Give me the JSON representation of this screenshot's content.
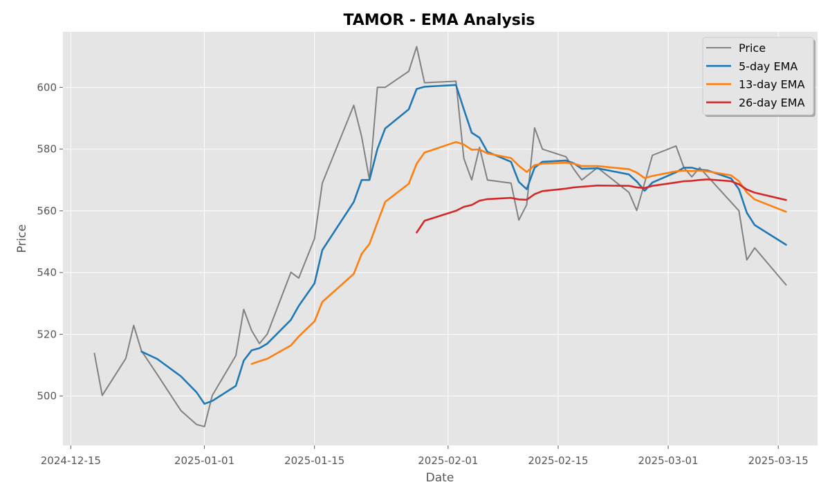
{
  "chart_data": {
    "type": "line",
    "title": "TAMOR - EMA Analysis",
    "xlabel": "Date",
    "ylabel": "Price",
    "x_ticks": [
      "2024-12-15",
      "2025-01-01",
      "2025-01-15",
      "2025-02-01",
      "2025-02-15",
      "2025-03-01",
      "2025-03-15"
    ],
    "y_ticks": [
      500,
      520,
      540,
      560,
      580,
      600
    ],
    "xlim": [
      "2024-12-14",
      "2025-03-20"
    ],
    "ylim": [
      484,
      618
    ],
    "grid": true,
    "legend_position": "top-right",
    "series": [
      {
        "name": "Price",
        "color": "#808080",
        "points": [
          [
            "2024-12-18",
            513.8
          ],
          [
            "2024-12-19",
            500.2
          ],
          [
            "2024-12-22",
            512.2
          ],
          [
            "2024-12-23",
            522.9
          ],
          [
            "2024-12-24",
            514.6
          ],
          [
            "2024-12-26",
            507.0
          ],
          [
            "2024-12-29",
            495.3
          ],
          [
            "2024-12-31",
            490.8
          ],
          [
            "2025-01-01",
            490.1
          ],
          [
            "2025-01-02",
            500.2
          ],
          [
            "2025-01-05",
            513.1
          ],
          [
            "2025-01-06",
            528.1
          ],
          [
            "2025-01-07",
            521.2
          ],
          [
            "2025-01-08",
            517.0
          ],
          [
            "2025-01-09",
            520.1
          ],
          [
            "2025-01-12",
            540.1
          ],
          [
            "2025-01-13",
            538.2
          ],
          [
            "2025-01-15",
            551.0
          ],
          [
            "2025-01-16",
            569.0
          ],
          [
            "2025-01-20",
            594.2
          ],
          [
            "2025-01-21",
            584.0
          ],
          [
            "2025-01-22",
            570.0
          ],
          [
            "2025-01-23",
            600.0
          ],
          [
            "2025-01-24",
            600.0
          ],
          [
            "2025-01-27",
            605.2
          ],
          [
            "2025-01-28",
            613.2
          ],
          [
            "2025-01-29",
            601.5
          ],
          [
            "2025-02-02",
            602.0
          ],
          [
            "2025-02-03",
            577.0
          ],
          [
            "2025-02-04",
            570.0
          ],
          [
            "2025-02-05",
            580.6
          ],
          [
            "2025-02-06",
            570.0
          ],
          [
            "2025-02-09",
            569.0
          ],
          [
            "2025-02-10",
            557.0
          ],
          [
            "2025-02-11",
            562.0
          ],
          [
            "2025-02-12",
            586.9
          ],
          [
            "2025-02-13",
            580.0
          ],
          [
            "2025-02-16",
            577.5
          ],
          [
            "2025-02-17",
            573.5
          ],
          [
            "2025-02-18",
            570.0
          ],
          [
            "2025-02-20",
            574.0
          ],
          [
            "2025-02-24",
            566.0
          ],
          [
            "2025-02-25",
            560.1
          ],
          [
            "2025-02-27",
            578.0
          ],
          [
            "2025-03-02",
            581.0
          ],
          [
            "2025-03-03",
            574.0
          ],
          [
            "2025-03-04",
            571.0
          ],
          [
            "2025-03-05",
            574.0
          ],
          [
            "2025-03-10",
            560.0
          ],
          [
            "2025-03-11",
            544.1
          ],
          [
            "2025-03-12",
            548.0
          ],
          [
            "2025-03-16",
            536.0
          ]
        ]
      },
      {
        "name": "5-day EMA",
        "color": "#1f77b4",
        "points": [
          [
            "2024-12-24",
            514.4
          ],
          [
            "2024-12-26",
            512.0
          ],
          [
            "2024-12-29",
            506.4
          ],
          [
            "2024-12-31",
            501.2
          ],
          [
            "2025-01-01",
            497.5
          ],
          [
            "2025-01-02",
            498.4
          ],
          [
            "2025-01-05",
            503.3
          ],
          [
            "2025-01-06",
            511.5
          ],
          [
            "2025-01-07",
            514.8
          ],
          [
            "2025-01-08",
            515.5
          ],
          [
            "2025-01-09",
            517.0
          ],
          [
            "2025-01-12",
            524.7
          ],
          [
            "2025-01-13",
            529.2
          ],
          [
            "2025-01-15",
            536.5
          ],
          [
            "2025-01-16",
            547.3
          ],
          [
            "2025-01-20",
            562.9
          ],
          [
            "2025-01-21",
            570.0
          ],
          [
            "2025-01-22",
            570.0
          ],
          [
            "2025-01-23",
            580.0
          ],
          [
            "2025-01-24",
            586.7
          ],
          [
            "2025-01-27",
            592.9
          ],
          [
            "2025-01-28",
            599.5
          ],
          [
            "2025-01-29",
            600.2
          ],
          [
            "2025-02-02",
            600.8
          ],
          [
            "2025-02-03",
            592.9
          ],
          [
            "2025-02-04",
            585.3
          ],
          [
            "2025-02-05",
            583.7
          ],
          [
            "2025-02-06",
            579.1
          ],
          [
            "2025-02-09",
            575.9
          ],
          [
            "2025-02-10",
            569.4
          ],
          [
            "2025-02-11",
            567.0
          ],
          [
            "2025-02-12",
            574.0
          ],
          [
            "2025-02-13",
            575.9
          ],
          [
            "2025-02-16",
            576.3
          ],
          [
            "2025-02-17",
            575.4
          ],
          [
            "2025-02-18",
            573.6
          ],
          [
            "2025-02-20",
            573.8
          ],
          [
            "2025-02-24",
            571.8
          ],
          [
            "2025-02-25",
            569.5
          ],
          [
            "2025-02-26",
            566.5
          ],
          [
            "2025-02-27",
            569.2
          ],
          [
            "2025-03-02",
            572.5
          ],
          [
            "2025-03-03",
            574.0
          ],
          [
            "2025-03-04",
            574.0
          ],
          [
            "2025-03-05",
            573.3
          ],
          [
            "2025-03-06",
            573.1
          ],
          [
            "2025-03-09",
            570.5
          ],
          [
            "2025-03-10",
            567.0
          ],
          [
            "2025-03-11",
            559.4
          ],
          [
            "2025-03-12",
            555.4
          ],
          [
            "2025-03-16",
            549.0
          ]
        ]
      },
      {
        "name": "13-day EMA",
        "color": "#ff7f0e",
        "points": [
          [
            "2025-01-07",
            510.4
          ],
          [
            "2025-01-08",
            511.3
          ],
          [
            "2025-01-09",
            512.1
          ],
          [
            "2025-01-12",
            516.4
          ],
          [
            "2025-01-13",
            519.3
          ],
          [
            "2025-01-15",
            524.2
          ],
          [
            "2025-01-16",
            530.5
          ],
          [
            "2025-01-20",
            539.6
          ],
          [
            "2025-01-21",
            546.1
          ],
          [
            "2025-01-22",
            549.3
          ],
          [
            "2025-01-23",
            556.2
          ],
          [
            "2025-01-24",
            562.9
          ],
          [
            "2025-01-27",
            568.8
          ],
          [
            "2025-01-28",
            575.3
          ],
          [
            "2025-01-29",
            578.9
          ],
          [
            "2025-02-02",
            582.3
          ],
          [
            "2025-02-03",
            581.5
          ],
          [
            "2025-02-04",
            579.8
          ],
          [
            "2025-02-05",
            579.9
          ],
          [
            "2025-02-06",
            578.6
          ],
          [
            "2025-02-09",
            577.1
          ],
          [
            "2025-02-10",
            574.6
          ],
          [
            "2025-02-11",
            572.6
          ],
          [
            "2025-02-12",
            574.8
          ],
          [
            "2025-02-13",
            575.3
          ],
          [
            "2025-02-16",
            575.6
          ],
          [
            "2025-02-17",
            575.3
          ],
          [
            "2025-02-18",
            574.5
          ],
          [
            "2025-02-20",
            574.5
          ],
          [
            "2025-02-24",
            573.5
          ],
          [
            "2025-02-25",
            572.4
          ],
          [
            "2025-02-26",
            570.6
          ],
          [
            "2025-02-27",
            571.3
          ],
          [
            "2025-03-02",
            572.8
          ],
          [
            "2025-03-03",
            573.0
          ],
          [
            "2025-03-04",
            572.9
          ],
          [
            "2025-03-05",
            573.0
          ],
          [
            "2025-03-06",
            572.8
          ],
          [
            "2025-03-09",
            571.5
          ],
          [
            "2025-03-10",
            569.6
          ],
          [
            "2025-03-11",
            566.0
          ],
          [
            "2025-03-12",
            563.7
          ],
          [
            "2025-03-16",
            559.7
          ]
        ]
      },
      {
        "name": "26-day EMA",
        "color": "#d62728",
        "points": [
          [
            "2025-01-28",
            553.0
          ],
          [
            "2025-01-29",
            556.8
          ],
          [
            "2025-02-02",
            560.0
          ],
          [
            "2025-02-03",
            561.3
          ],
          [
            "2025-02-04",
            561.9
          ],
          [
            "2025-02-05",
            563.3
          ],
          [
            "2025-02-06",
            563.8
          ],
          [
            "2025-02-09",
            564.2
          ],
          [
            "2025-02-10",
            563.7
          ],
          [
            "2025-02-11",
            563.6
          ],
          [
            "2025-02-12",
            565.4
          ],
          [
            "2025-02-13",
            566.4
          ],
          [
            "2025-02-16",
            567.2
          ],
          [
            "2025-02-17",
            567.6
          ],
          [
            "2025-02-18",
            567.8
          ],
          [
            "2025-02-20",
            568.2
          ],
          [
            "2025-02-24",
            568.1
          ],
          [
            "2025-02-25",
            567.6
          ],
          [
            "2025-02-26",
            567.4
          ],
          [
            "2025-02-27",
            568.1
          ],
          [
            "2025-03-02",
            569.2
          ],
          [
            "2025-03-03",
            569.6
          ],
          [
            "2025-03-04",
            569.7
          ],
          [
            "2025-03-05",
            570.0
          ],
          [
            "2025-03-06",
            570.2
          ],
          [
            "2025-03-09",
            569.6
          ],
          [
            "2025-03-10",
            568.6
          ],
          [
            "2025-03-11",
            566.9
          ],
          [
            "2025-03-12",
            565.9
          ],
          [
            "2025-03-16",
            563.5
          ]
        ]
      }
    ]
  }
}
